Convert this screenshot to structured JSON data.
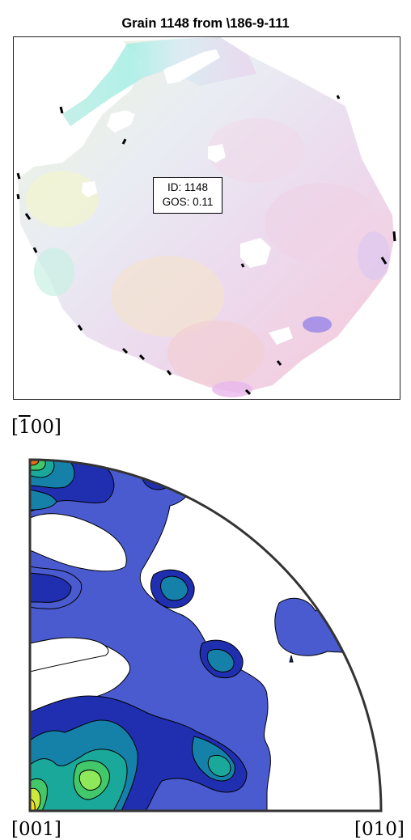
{
  "map": {
    "title": "Grain 1148 from \\186-9-111",
    "id_label": "ID: 1148",
    "gos_label": "GOS: 0.11"
  },
  "pole_figure": {
    "top_label_pre": "[",
    "top_label_bar": "1",
    "top_label_post": "00]",
    "bottom_left_label": "[001]",
    "bottom_right_label": "[010]"
  }
}
